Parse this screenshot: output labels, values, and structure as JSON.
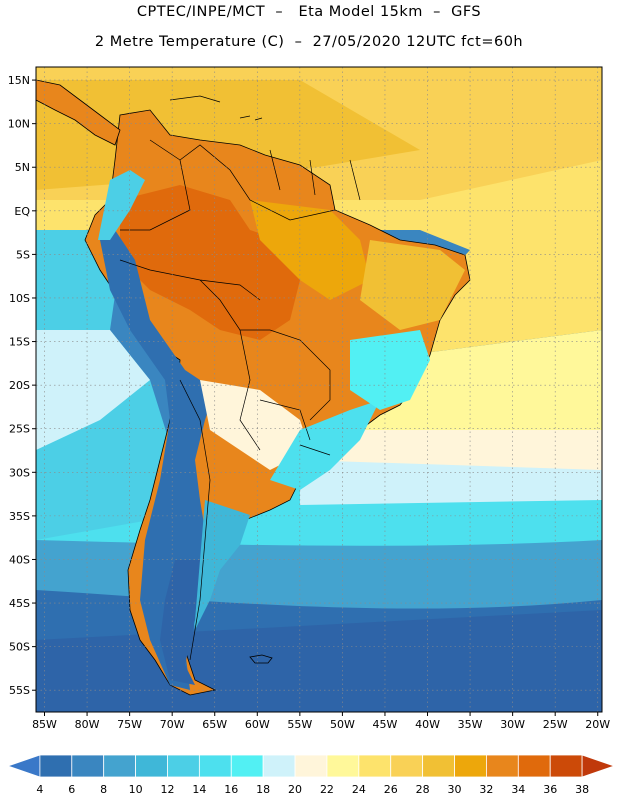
{
  "header": {
    "line1": "CPTEC/INPE/MCT  –   Eta Model 15km  –  GFS",
    "line2": "2 Metre Temperature (C)  –  27/05/2020 12UTC fct=60h"
  },
  "map": {
    "lat_labels": [
      "15N",
      "10N",
      "5N",
      "EQ",
      "5S",
      "10S",
      "15S",
      "20S",
      "25S",
      "30S",
      "35S",
      "40S",
      "45S",
      "50S",
      "55S"
    ],
    "lat_values": [
      15,
      10,
      5,
      0,
      -5,
      -10,
      -15,
      -20,
      -25,
      -30,
      -35,
      -40,
      -45,
      -50,
      -55
    ],
    "lon_labels": [
      "85W",
      "80W",
      "75W",
      "70W",
      "65W",
      "60W",
      "55W",
      "50W",
      "45W",
      "40W",
      "35W",
      "30W",
      "25W",
      "20W"
    ],
    "lon_values": [
      -85,
      -80,
      -75,
      -70,
      -65,
      -60,
      -55,
      -50,
      -45,
      -40,
      -35,
      -30,
      -25,
      -20
    ],
    "extent": {
      "lon_min": -86,
      "lon_max": -19.5,
      "lat_min": -57.5,
      "lat_max": 16.5
    },
    "colors": {
      "frame": "#000000",
      "grid": "#8a8a8a",
      "coast": "#000000"
    }
  },
  "legend": {
    "levels": [
      "4",
      "6",
      "8",
      "10",
      "12",
      "14",
      "16",
      "18",
      "20",
      "22",
      "24",
      "26",
      "28",
      "30",
      "32",
      "34",
      "36",
      "38"
    ],
    "colors": [
      "#3a78c8",
      "#2f6fb0",
      "#3a86c0",
      "#44a3cf",
      "#3fb7d8",
      "#4ccfe6",
      "#4de0ee",
      "#52f0f3",
      "#cff2fa",
      "#fff5da",
      "#fff89a",
      "#fde36c",
      "#f9d156",
      "#f1c034",
      "#eda70b",
      "#e8861c",
      "#e06a0c",
      "#cc4a08",
      "#c0390b"
    ]
  }
}
